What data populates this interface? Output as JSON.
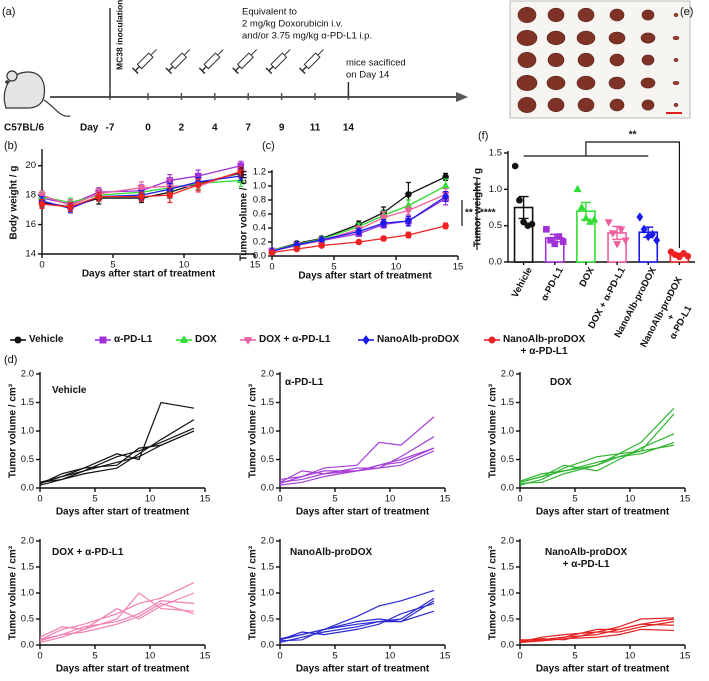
{
  "timeline": {
    "panel_label": "(a)",
    "strain": "C57BL/6",
    "day_label": "Day",
    "days": [
      -7,
      0,
      2,
      4,
      7,
      9,
      11,
      14
    ],
    "inoculation": "MC38 inoculation",
    "treatment_note": [
      "Equivalent to",
      "2 mg/kg Doxorubicin i.v.",
      "and/or 3.75 mg/kg α-PD-L1 i.p."
    ],
    "end_note": [
      "mice sacificed",
      "on Day 14"
    ]
  },
  "photo": {
    "panel_label": "(e)"
  },
  "chart_data": [
    {
      "type": "line",
      "panel_label": "(b)",
      "ylabel": "Body weight / g",
      "xlabel": "Days after start of treatment",
      "x": [
        0,
        2,
        4,
        7,
        9,
        11,
        14
      ],
      "xlim": [
        0,
        15
      ],
      "xticks": [
        0,
        5,
        10,
        15
      ],
      "ylim": [
        14,
        21
      ],
      "yticks": [
        14,
        16,
        18,
        20
      ],
      "series": [
        {
          "name": "Vehicle",
          "color": "#111111",
          "marker": "circle",
          "values": [
            17.5,
            17.2,
            17.8,
            17.8,
            18.2,
            18.8,
            19.5
          ],
          "errors": [
            0.3,
            0.3,
            0.4,
            0.3,
            0.4,
            0.4,
            0.3
          ]
        },
        {
          "name": "α-PD-L1",
          "color": "#a030d8",
          "marker": "square",
          "values": [
            17.8,
            17.4,
            18.2,
            18.3,
            19.0,
            19.3,
            20.0
          ],
          "errors": [
            0.3,
            0.3,
            0.3,
            0.4,
            0.4,
            0.4,
            0.3
          ]
        },
        {
          "name": "DOX",
          "color": "#33dd33",
          "marker": "triangle",
          "values": [
            17.9,
            17.5,
            18.0,
            18.2,
            18.5,
            18.8,
            19.0
          ],
          "errors": [
            0.3,
            0.3,
            0.4,
            0.3,
            0.3,
            0.4,
            0.4
          ]
        },
        {
          "name": "DOX + α-PD-L1",
          "color": "#f0609e",
          "marker": "triangle-down",
          "values": [
            18.0,
            17.3,
            18.1,
            18.5,
            18.6,
            18.6,
            19.6
          ],
          "errors": [
            0.3,
            0.4,
            0.3,
            0.4,
            0.5,
            0.4,
            0.3
          ]
        },
        {
          "name": "NanoAlb-proDOX",
          "color": "#1a1aee",
          "marker": "diamond",
          "values": [
            17.6,
            17.1,
            17.9,
            18.0,
            18.4,
            18.9,
            19.3
          ],
          "errors": [
            0.3,
            0.3,
            0.3,
            0.3,
            0.4,
            0.3,
            0.3
          ]
        },
        {
          "name": "NanoAlb-proDOX\n+ α-PD-L1",
          "color": "#ee2222",
          "marker": "circle",
          "values": [
            17.4,
            17.2,
            17.9,
            17.9,
            18.0,
            18.7,
            19.6
          ],
          "errors": [
            0.3,
            0.3,
            0.3,
            0.3,
            0.5,
            0.4,
            0.3
          ]
        }
      ]
    },
    {
      "type": "line",
      "panel_label": "(c)",
      "ylabel": "Tumor volume / cm³",
      "xlabel": "Days after start of treatment",
      "x": [
        0,
        2,
        4,
        7,
        9,
        11,
        14
      ],
      "xlim": [
        0,
        15
      ],
      "xticks": [
        0,
        5,
        10,
        15
      ],
      "ylim": [
        0,
        1.2
      ],
      "yticks": [
        {
          "value": 0,
          "label": "0.0"
        },
        0.2,
        0.4,
        0.6,
        0.8,
        {
          "value": 1,
          "label": "1.0"
        },
        1.2
      ],
      "annotations": [
        "**",
        "****"
      ],
      "series": [
        {
          "color": "#111111",
          "marker": "circle",
          "values": [
            0.08,
            0.18,
            0.25,
            0.45,
            0.62,
            0.88,
            1.13
          ],
          "errors": [
            0.01,
            0.02,
            0.03,
            0.05,
            0.08,
            0.17,
            0.05
          ]
        },
        {
          "color": "#a030d8",
          "marker": "square",
          "values": [
            0.07,
            0.15,
            0.22,
            0.32,
            0.45,
            0.5,
            0.82
          ],
          "errors": [
            0.01,
            0.02,
            0.02,
            0.04,
            0.05,
            0.06,
            0.09
          ]
        },
        {
          "color": "#33dd33",
          "marker": "triangle",
          "values": [
            0.08,
            0.17,
            0.24,
            0.42,
            0.58,
            0.72,
            1.0
          ],
          "errors": [
            0.01,
            0.02,
            0.03,
            0.05,
            0.06,
            0.08,
            0.1
          ]
        },
        {
          "color": "#f0609e",
          "marker": "triangle-down",
          "values": [
            0.07,
            0.16,
            0.22,
            0.38,
            0.55,
            0.65,
            0.88
          ],
          "errors": [
            0.01,
            0.02,
            0.03,
            0.05,
            0.08,
            0.06,
            0.08
          ]
        },
        {
          "color": "#1a1aee",
          "marker": "diamond",
          "values": [
            0.07,
            0.16,
            0.23,
            0.35,
            0.47,
            0.5,
            0.85
          ],
          "errors": [
            0.01,
            0.02,
            0.02,
            0.04,
            0.05,
            0.07,
            0.07
          ]
        },
        {
          "color": "#ee2222",
          "marker": "circle",
          "values": [
            0.05,
            0.1,
            0.15,
            0.2,
            0.25,
            0.3,
            0.43
          ],
          "errors": [
            0.01,
            0.01,
            0.02,
            0.02,
            0.03,
            0.04,
            0.04
          ]
        }
      ]
    },
    {
      "type": "bar",
      "panel_label": "(f)",
      "ylabel": "Tumor weight / g",
      "categories": [
        "Vehicle",
        "α-PD-L1",
        "DOX",
        "DOX + α-PD-L1",
        "NanoAlb-proDOX",
        "NanoAlb-proDOX\n+\nα-PD-L1"
      ],
      "values": [
        0.75,
        0.33,
        0.7,
        0.4,
        0.41,
        0.1
      ],
      "errors": [
        0.15,
        0.05,
        0.12,
        0.09,
        0.07,
        0.02
      ],
      "colors": [
        "#111111",
        "#a030d8",
        "#33dd33",
        "#f0609e",
        "#1a1aee",
        "#ee2222"
      ],
      "markers": [
        "circle",
        "square",
        "triangle",
        "triangle-down",
        "diamond",
        "circle"
      ],
      "points": [
        [
          1.32,
          0.85,
          0.55,
          0.5,
          0.52
        ],
        [
          0.45,
          0.3,
          0.25,
          0.35,
          0.28
        ],
        [
          1.0,
          0.75,
          0.6,
          0.55,
          0.58
        ],
        [
          0.55,
          0.4,
          0.25,
          0.45,
          0.3
        ],
        [
          0.62,
          0.45,
          0.35,
          0.38,
          0.3
        ],
        [
          0.14,
          0.1,
          0.07,
          0.12,
          0.08
        ]
      ],
      "ylim": [
        0,
        1.5
      ],
      "yticks": [
        {
          "value": 0,
          "label": "0.0"
        },
        0.5,
        {
          "value": 1,
          "label": "1.0"
        },
        1.5
      ],
      "annotation": "**"
    },
    {
      "type": "line",
      "panel_label": "(d)",
      "title": "Vehicle",
      "ylabel": "Tumor volume / cm³",
      "xlabel": "Days after start of treatment",
      "x": [
        0,
        2,
        4,
        7,
        9,
        11,
        14
      ],
      "xlim": [
        0,
        15
      ],
      "xticks": [
        0,
        5,
        10,
        15
      ],
      "ylim": [
        0,
        2
      ],
      "yticks": [
        {
          "value": 0,
          "label": "0.0"
        },
        0.5,
        {
          "value": 1,
          "label": "1.0"
        },
        1.5,
        {
          "value": 2,
          "label": "2.0"
        }
      ],
      "series": [
        {
          "color": "#111111",
          "values": [
            0.1,
            0.15,
            0.3,
            0.45,
            0.55,
            0.75,
            1.0
          ]
        },
        {
          "color": "#111111",
          "values": [
            0.08,
            0.2,
            0.35,
            0.6,
            0.5,
            1.5,
            1.4
          ]
        },
        {
          "color": "#111111",
          "values": [
            0.05,
            0.15,
            0.25,
            0.35,
            0.6,
            0.85,
            1.2
          ]
        },
        {
          "color": "#111111",
          "values": [
            0.1,
            0.2,
            0.3,
            0.55,
            0.65,
            0.8,
            1.05
          ]
        },
        {
          "color": "#111111",
          "values": [
            0.07,
            0.25,
            0.35,
            0.4,
            0.7,
            0.75,
            1.0
          ]
        }
      ]
    },
    {
      "type": "line",
      "title": "α-PD-L1",
      "ylabel": "Tumor volume / cm³",
      "xlabel": "Days after start of treatment",
      "x": [
        0,
        2,
        4,
        7,
        9,
        11,
        14
      ],
      "xlim": [
        0,
        15
      ],
      "xticks": [
        0,
        5,
        10,
        15
      ],
      "ylim": [
        0,
        2
      ],
      "yticks": [
        {
          "value": 0,
          "label": "0.0"
        },
        0.5,
        {
          "value": 1,
          "label": "1.0"
        },
        1.5,
        {
          "value": 2,
          "label": "2.0"
        }
      ],
      "series": [
        {
          "color": "#a640d6",
          "values": [
            0.1,
            0.3,
            0.25,
            0.3,
            0.35,
            0.4,
            0.65
          ]
        },
        {
          "color": "#a640d6",
          "values": [
            0.15,
            0.2,
            0.35,
            0.4,
            0.8,
            0.75,
            1.25
          ]
        },
        {
          "color": "#a640d6",
          "values": [
            0.05,
            0.1,
            0.2,
            0.3,
            0.4,
            0.45,
            0.7
          ]
        },
        {
          "color": "#a640d6",
          "values": [
            0.1,
            0.15,
            0.25,
            0.35,
            0.35,
            0.55,
            0.9
          ]
        },
        {
          "color": "#a640d6",
          "values": [
            0.08,
            0.2,
            0.3,
            0.3,
            0.4,
            0.5,
            0.7
          ]
        }
      ]
    },
    {
      "type": "line",
      "title": "DOX",
      "ylabel": "Tumor volume / cm³",
      "xlabel": "Days after start of treatment",
      "x": [
        0,
        2,
        4,
        7,
        9,
        11,
        14
      ],
      "xlim": [
        0,
        15
      ],
      "xticks": [
        0,
        5,
        10,
        15
      ],
      "ylim": [
        0,
        2
      ],
      "yticks": [
        {
          "value": 0,
          "label": "0.0"
        },
        0.5,
        {
          "value": 1,
          "label": "1.0"
        },
        1.5,
        {
          "value": 2,
          "label": "2.0"
        }
      ],
      "series": [
        {
          "color": "#2fb52f",
          "values": [
            0.1,
            0.2,
            0.3,
            0.4,
            0.6,
            0.8,
            1.4
          ]
        },
        {
          "color": "#2fb52f",
          "values": [
            0.05,
            0.15,
            0.35,
            0.55,
            0.6,
            0.65,
            1.3
          ]
        },
        {
          "color": "#2fb52f",
          "values": [
            0.1,
            0.2,
            0.4,
            0.3,
            0.5,
            0.7,
            0.95
          ]
        },
        {
          "color": "#2fb52f",
          "values": [
            0.08,
            0.1,
            0.25,
            0.4,
            0.55,
            0.6,
            0.8
          ]
        },
        {
          "color": "#2fb52f",
          "values": [
            0.12,
            0.25,
            0.3,
            0.45,
            0.55,
            0.65,
            0.75
          ]
        }
      ]
    },
    {
      "type": "line",
      "title": "DOX + α-PD-L1",
      "ylabel": "Tumor volume / cm³",
      "xlabel": "Days after start of treatment",
      "x": [
        0,
        2,
        4,
        7,
        9,
        11,
        14
      ],
      "xlim": [
        0,
        15
      ],
      "xticks": [
        0,
        5,
        10,
        15
      ],
      "ylim": [
        0,
        2
      ],
      "yticks": [
        {
          "value": 0,
          "label": "0.0"
        },
        0.5,
        {
          "value": 1,
          "label": "1.0"
        },
        1.5,
        {
          "value": 2,
          "label": "2.0"
        }
      ],
      "series": [
        {
          "color": "#f37fb0",
          "values": [
            0.1,
            0.3,
            0.4,
            0.6,
            0.8,
            0.9,
            1.2
          ]
        },
        {
          "color": "#f37fb0",
          "values": [
            0.05,
            0.15,
            0.3,
            0.5,
            1.0,
            0.7,
            0.65
          ]
        },
        {
          "color": "#f37fb0",
          "values": [
            0.08,
            0.2,
            0.35,
            0.45,
            0.6,
            0.85,
            0.8
          ]
        },
        {
          "color": "#f37fb0",
          "values": [
            0.15,
            0.35,
            0.3,
            0.7,
            0.5,
            0.75,
            1.0
          ]
        },
        {
          "color": "#f37fb0",
          "values": [
            0.1,
            0.2,
            0.25,
            0.4,
            0.55,
            0.8,
            0.6
          ]
        }
      ]
    },
    {
      "type": "line",
      "title": "NanoAlb-proDOX",
      "ylabel": "Tumor volume / cm³",
      "xlabel": "Days after start of treatment",
      "x": [
        0,
        2,
        4,
        7,
        9,
        11,
        14
      ],
      "xlim": [
        0,
        15
      ],
      "xticks": [
        0,
        5,
        10,
        15
      ],
      "ylim": [
        0,
        2
      ],
      "yticks": [
        {
          "value": 0,
          "label": "0.0"
        },
        0.5,
        {
          "value": 1,
          "label": "1.0"
        },
        1.5,
        {
          "value": 2,
          "label": "2.0"
        }
      ],
      "series": [
        {
          "color": "#2a2ad0",
          "values": [
            0.1,
            0.2,
            0.3,
            0.55,
            0.75,
            0.85,
            1.05
          ]
        },
        {
          "color": "#2a2ad0",
          "values": [
            0.05,
            0.15,
            0.25,
            0.35,
            0.45,
            0.45,
            0.85
          ]
        },
        {
          "color": "#2a2ad0",
          "values": [
            0.08,
            0.1,
            0.3,
            0.4,
            0.45,
            0.5,
            0.9
          ]
        },
        {
          "color": "#2a2ad0",
          "values": [
            0.1,
            0.25,
            0.2,
            0.3,
            0.4,
            0.6,
            0.8
          ]
        },
        {
          "color": "#2a2ad0",
          "values": [
            0.12,
            0.2,
            0.3,
            0.45,
            0.5,
            0.45,
            0.65
          ]
        }
      ]
    },
    {
      "type": "line",
      "title": "NanoAlb-proDOX\n+ α-PD-L1",
      "ylabel": "Tumor volume / cm³",
      "xlabel": "Days after start of treatment",
      "x": [
        0,
        2,
        4,
        7,
        9,
        11,
        14
      ],
      "xlim": [
        0,
        15
      ],
      "xticks": [
        0,
        5,
        10,
        15
      ],
      "ylim": [
        0,
        2
      ],
      "yticks": [
        {
          "value": 0,
          "label": "0.0"
        },
        0.5,
        {
          "value": 1,
          "label": "1.0"
        },
        1.5,
        {
          "value": 2,
          "label": "2.0"
        }
      ],
      "series": [
        {
          "color": "#e42020",
          "values": [
            0.05,
            0.1,
            0.15,
            0.2,
            0.3,
            0.4,
            0.5
          ]
        },
        {
          "color": "#e42020",
          "values": [
            0.08,
            0.12,
            0.1,
            0.25,
            0.25,
            0.35,
            0.45
          ]
        },
        {
          "color": "#e42020",
          "values": [
            0.06,
            0.15,
            0.2,
            0.25,
            0.35,
            0.5,
            0.52
          ]
        },
        {
          "color": "#e42020",
          "values": [
            0.1,
            0.1,
            0.15,
            0.3,
            0.3,
            0.4,
            0.38
          ]
        },
        {
          "color": "#e42020",
          "values": [
            0.05,
            0.08,
            0.12,
            0.15,
            0.2,
            0.3,
            0.28
          ]
        }
      ]
    }
  ]
}
